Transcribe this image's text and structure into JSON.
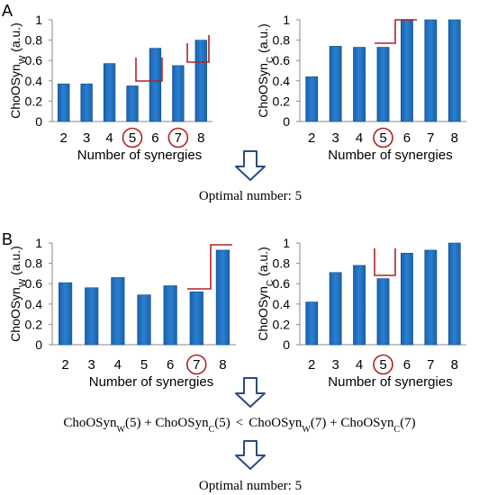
{
  "panel_labels": {
    "a": "A",
    "b": "B"
  },
  "captions": {
    "optimal_a": "Optimal number: 5",
    "optimal_b": "Optimal number: 5",
    "formula": {
      "left_w": "ChoOSyn",
      "left_w_sub": "W",
      "left_w_arg": "(5) + ",
      "left_c": "ChoOSyn",
      "left_c_sub": "C",
      "left_c_arg": "(5)",
      "lt": "<",
      "right_w": "ChoOSyn",
      "right_w_sub": "W",
      "right_w_arg": "(7) + ",
      "right_c": "ChoOSyn",
      "right_c_sub": "C",
      "right_c_arg": "(7)"
    }
  },
  "colors": {
    "bar": "#1f6fbf",
    "bar_edge": "#0f4f8f",
    "highlight": "#b22222",
    "arrow": "#2a4d80"
  },
  "chart_data": [
    {
      "id": "a-left",
      "type": "bar",
      "categories": [
        "2",
        "3",
        "4",
        "5",
        "6",
        "7",
        "8"
      ],
      "values": [
        0.37,
        0.37,
        0.57,
        0.35,
        0.72,
        0.55,
        0.8
      ],
      "xlabel": "Number of synergies",
      "ylabel": "ChoOSyn",
      "ylabel_sub": "W",
      "ylabel_unit": " (a.u.)",
      "ylim": [
        0,
        1
      ],
      "yticks": [
        "0",
        "0.2",
        "0.4",
        "0.6",
        "0.8",
        "1"
      ],
      "circled": [
        "5",
        "7"
      ],
      "grid": false
    },
    {
      "id": "a-right",
      "type": "bar",
      "categories": [
        "2",
        "3",
        "4",
        "5",
        "6",
        "7",
        "8"
      ],
      "values": [
        0.44,
        0.74,
        0.73,
        0.73,
        1.0,
        1.0,
        1.0
      ],
      "xlabel": "Number of synergies",
      "ylabel": "ChoOSyn",
      "ylabel_sub": "C",
      "ylabel_unit": " (a.u.)",
      "ylim": [
        0,
        1
      ],
      "yticks": [
        "0",
        "0.2",
        "0.4",
        "0.6",
        "0.8",
        "1"
      ],
      "circled": [
        "5"
      ],
      "grid": false
    },
    {
      "id": "b-left",
      "type": "bar",
      "categories": [
        "2",
        "3",
        "4",
        "5",
        "6",
        "7",
        "8"
      ],
      "values": [
        0.61,
        0.56,
        0.66,
        0.49,
        0.58,
        0.52,
        0.93
      ],
      "xlabel": "Number of synergies",
      "ylabel": "ChoOSyn",
      "ylabel_sub": "W",
      "ylabel_unit": " (a.u.)",
      "ylim": [
        0,
        1
      ],
      "yticks": [
        "0",
        "0.2",
        "0.4",
        "0.6",
        "0.8",
        "1"
      ],
      "circled": [
        "7"
      ],
      "grid": false
    },
    {
      "id": "b-right",
      "type": "bar",
      "categories": [
        "2",
        "3",
        "4",
        "5",
        "6",
        "7",
        "8"
      ],
      "values": [
        0.42,
        0.71,
        0.78,
        0.65,
        0.9,
        0.93,
        1.0
      ],
      "xlabel": "Number of synergies",
      "ylabel": "ChoOSyn",
      "ylabel_sub": "C",
      "ylabel_unit": " (a.u.)",
      "ylim": [
        0,
        1
      ],
      "yticks": [
        "0",
        "0.2",
        "0.4",
        "0.6",
        "0.8",
        "1"
      ],
      "circled": [
        "5"
      ],
      "grid": false
    }
  ]
}
